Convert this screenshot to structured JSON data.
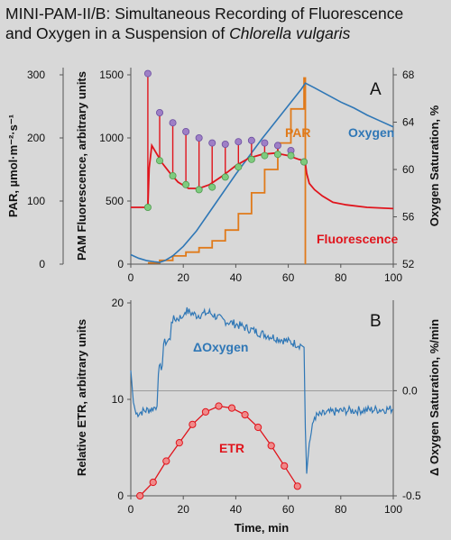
{
  "title": {
    "line1": "MINI-PAM-II/B: Simultaneous Recording of Fluorescence",
    "line2_prefix": "and Oxygen in a Suspension of ",
    "line2_italic": "Chlorella vulgaris"
  },
  "colors": {
    "background": "#d8d8d8",
    "fluorescence": "#e0141c",
    "oxygen": "#2f77b6",
    "par": "#e07a1a",
    "pulse_marker": "#9e7fc6",
    "baseline_marker": "#7ecb7e",
    "etr": "#e0141c",
    "delta_oxygen": "#2f77b6"
  },
  "chart_data": [
    {
      "type": "line",
      "panel_label": "A",
      "xlabel": "",
      "x_ticks": [
        "0",
        "20",
        "40",
        "60",
        "80",
        "100"
      ],
      "xlim": [
        0,
        100
      ],
      "ylabel_par": "PAR, µmol·m⁻²·s⁻¹",
      "ylim_par": [
        0,
        300
      ],
      "par_ticks": [
        "0",
        "100",
        "200",
        "300"
      ],
      "ylabel_fluorescence": "PAM Fluorescence, arbitrary units",
      "ylim_fluorescence": [
        0,
        1500
      ],
      "fluorescence_ticks": [
        "0",
        "500",
        "1000",
        "1500"
      ],
      "ylabel_oxygen": "Oxygen Saturation, %",
      "ylim_oxygen": [
        52,
        68
      ],
      "oxygen_ticks": [
        "52",
        "56",
        "60",
        "64",
        "68"
      ],
      "series": [
        {
          "name": "Oxygen",
          "axis": "oxygen",
          "x": [
            0,
            3,
            6,
            9,
            11,
            13,
            16,
            20,
            25,
            30,
            35,
            40,
            45,
            50,
            55,
            60,
            65,
            66.5,
            70,
            75,
            80,
            85,
            90,
            95,
            100
          ],
          "y": [
            52.8,
            52.5,
            52.3,
            52.2,
            52.15,
            52.3,
            52.7,
            53.5,
            54.8,
            56.4,
            58.0,
            59.6,
            61.1,
            62.6,
            64.0,
            65.4,
            66.8,
            67.3,
            66.9,
            66.3,
            65.7,
            65.2,
            64.6,
            64.1,
            63.6
          ]
        },
        {
          "name": "Fluorescence",
          "axis": "fluorescence",
          "x": [
            0,
            6.5,
            7,
            8,
            10,
            12,
            15,
            18,
            22,
            26,
            30,
            35,
            40,
            45,
            50,
            55,
            60,
            64,
            66,
            66.5,
            67,
            68,
            70,
            73,
            77,
            82,
            90,
            100
          ],
          "y": [
            450,
            450,
            760,
            940,
            870,
            800,
            720,
            650,
            600,
            600,
            630,
            700,
            780,
            840,
            870,
            880,
            860,
            830,
            820,
            800,
            720,
            640,
            590,
            540,
            490,
            470,
            450,
            440
          ]
        },
        {
          "name": "PAR",
          "axis": "par",
          "x": [
            6.5,
            11,
            16,
            21,
            26,
            31,
            36,
            41,
            46,
            51,
            56,
            61,
            66,
            66.5
          ],
          "y": [
            2,
            6,
            13,
            19,
            26,
            37,
            54,
            80,
            113,
            150,
            192,
            246,
            295,
            0
          ]
        }
      ],
      "pulses": {
        "x": [
          6.5,
          11,
          16,
          21,
          26,
          31,
          36,
          41,
          46,
          51,
          56,
          61,
          66
        ],
        "peak": [
          1510,
          1200,
          1120,
          1050,
          1000,
          960,
          950,
          970,
          980,
          960,
          940,
          900,
          810
        ],
        "base": [
          450,
          820,
          700,
          630,
          590,
          610,
          690,
          770,
          830,
          860,
          870,
          860,
          810
        ]
      },
      "labels": {
        "panel": "A",
        "oxygen": "Oxygen",
        "par": "PAR",
        "fluorescence": "Fluorescence"
      }
    },
    {
      "type": "line",
      "panel_label": "B",
      "xlabel": "Time, min",
      "x_ticks": [
        "0",
        "20",
        "40",
        "60",
        "80",
        "100"
      ],
      "xlim": [
        0,
        100
      ],
      "ylabel_etr": "Relative ETR, arbitrary units",
      "ylim_etr": [
        0,
        20
      ],
      "etr_ticks": [
        "0",
        "10",
        "20"
      ],
      "ylabel_delta_oxygen": "Δ Oxygen Saturation, %/min",
      "delta_oxygen_ticks": [
        "0.0",
        "-0.5"
      ],
      "series": [
        {
          "name": "ΔOxygen",
          "axis": "etr",
          "x": [
            0,
            1,
            2,
            5,
            8,
            10,
            10.5,
            12,
            12.5,
            15,
            15.5,
            20,
            21,
            25,
            30,
            35,
            40,
            45,
            50,
            55,
            60,
            65,
            66,
            66.5,
            67,
            68,
            70,
            75,
            80,
            90,
            100
          ],
          "y": [
            13,
            9.7,
            8.5,
            8.8,
            9.0,
            9.3,
            13,
            13.5,
            15.8,
            16.2,
            18.2,
            18.6,
            19.2,
            18.7,
            19.0,
            18.2,
            17.8,
            17.3,
            16.8,
            16.4,
            16.0,
            15.6,
            15.4,
            7,
            2.3,
            5.5,
            8.2,
            8.6,
            8.8,
            8.9,
            9.0
          ]
        },
        {
          "name": "ETR",
          "axis": "etr",
          "x": [
            3.5,
            8.5,
            13.5,
            18.5,
            23.5,
            28.5,
            33.5,
            38.5,
            43.5,
            48.5,
            53.5,
            58.5,
            63.5
          ],
          "y": [
            0,
            1.4,
            3.6,
            5.5,
            7.4,
            8.7,
            9.3,
            9.1,
            8.4,
            7.1,
            5.2,
            3.1,
            1.0
          ]
        }
      ],
      "zero_line_etr_value": 10.9,
      "labels": {
        "panel": "B",
        "delta_oxygen": "ΔOxygen",
        "etr": "ETR"
      }
    }
  ]
}
